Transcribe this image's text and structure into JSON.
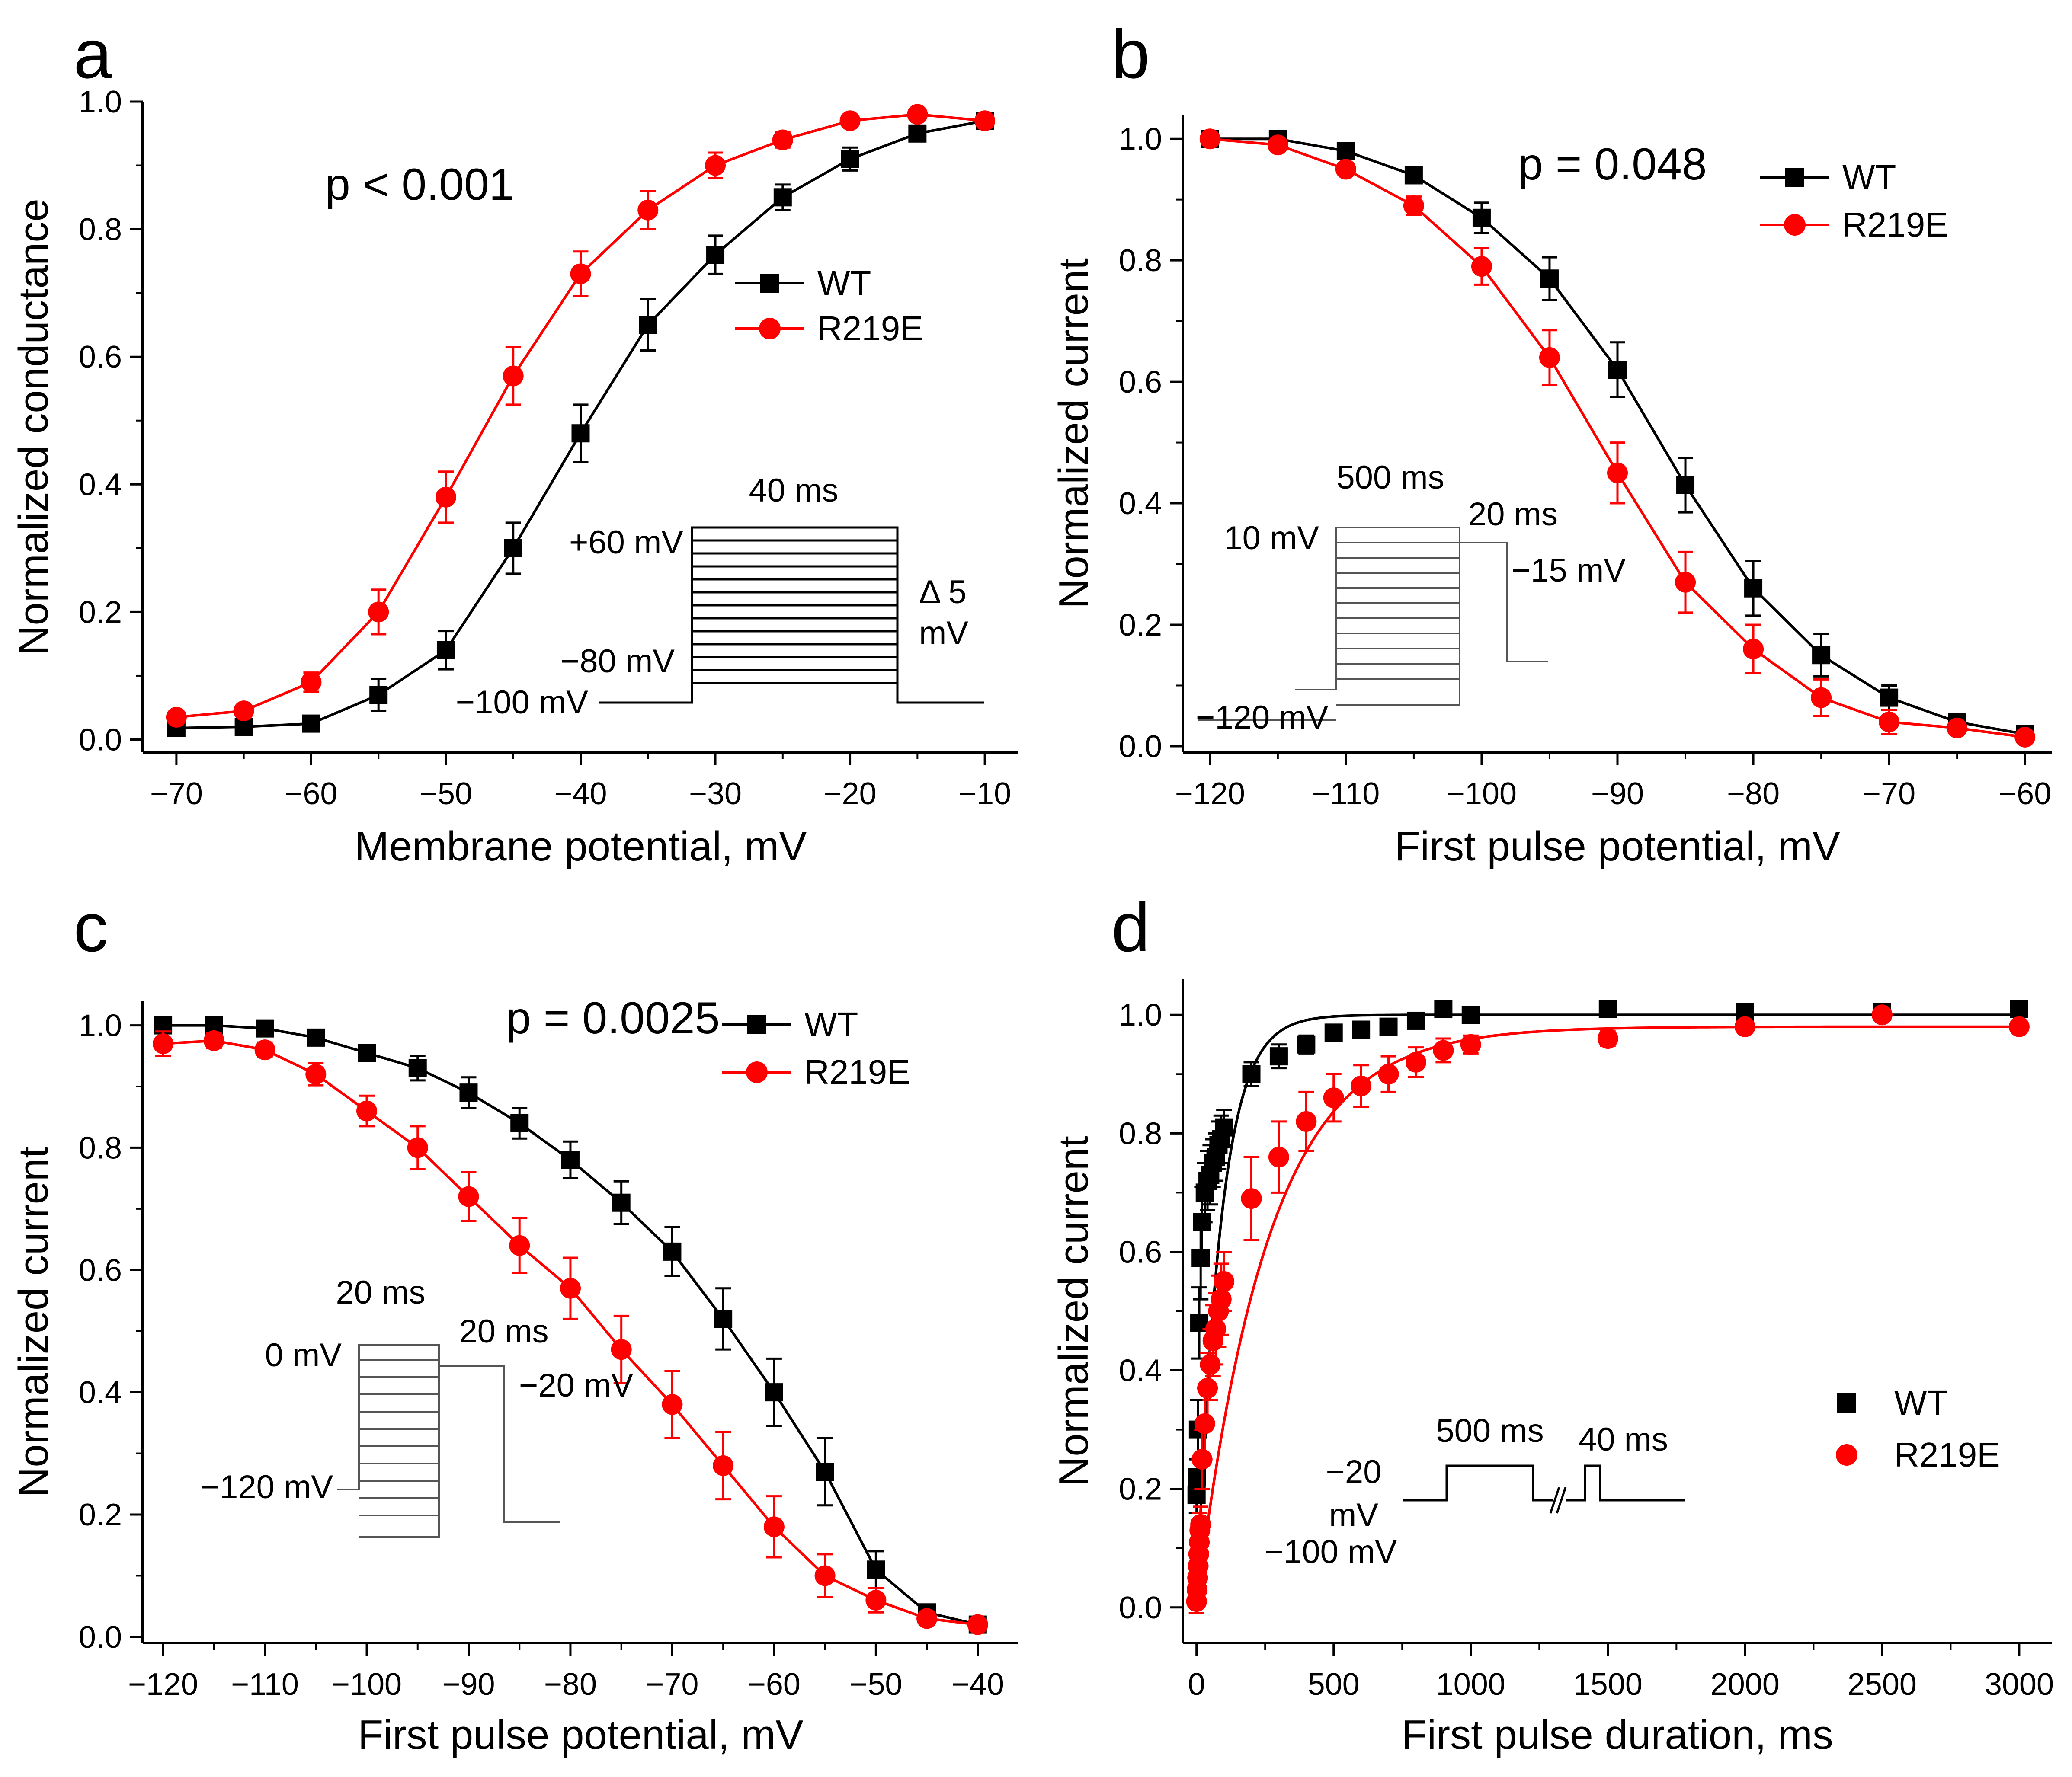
{
  "panels": [
    {
      "letter": "a",
      "pval": "p < 0.001",
      "inset": {
        "t1": "40 ms",
        "t2": "+60 mV",
        "t3": "Δ 5",
        "t4": "mV",
        "t5": "−80 mV",
        "t6": "−100 mV"
      }
    },
    {
      "letter": "b",
      "pval": "p = 0.048",
      "inset": {
        "t1": "500 ms",
        "t2": "20 ms",
        "t3": "10 mV",
        "t4": "−15 mV",
        "t5": "−120 mV"
      }
    },
    {
      "letter": "c",
      "pval": "p = 0.0025",
      "inset": {
        "t1": "20 ms",
        "t2": "0 mV",
        "t3": "20 ms",
        "t4": "−20 mV",
        "t5": "−120 mV"
      }
    },
    {
      "letter": "d",
      "pval": "",
      "inset": {
        "t1": "500 ms",
        "t2": "40 ms",
        "t3": "−20",
        "t4": "mV",
        "t5": "−100 mV"
      }
    }
  ],
  "colors": {
    "wt": "#000000",
    "r219e": "#ff0000"
  },
  "chart_data": [
    {
      "type": "scatter",
      "panel": "a",
      "title": "",
      "xlabel": "Membrane potential, mV",
      "ylabel": "Normalized conductance",
      "xlim": [
        -72.5,
        -7.5
      ],
      "ylim": [
        -0.02,
        1.0
      ],
      "xticks": [
        -70,
        -60,
        -50,
        -40,
        -30,
        -20,
        -10
      ],
      "xticklabels": [
        "−70",
        "−60",
        "−50",
        "−40",
        "−30",
        "−20",
        "−10"
      ],
      "yticks": [
        0.0,
        0.2,
        0.4,
        0.6,
        0.8,
        1.0
      ],
      "yticklabels": [
        "0.0",
        "0.2",
        "0.4",
        "0.6",
        "0.8",
        "1.0"
      ],
      "legend_position": "middle-right",
      "series": [
        {
          "name": "WT",
          "marker": "square",
          "line": true,
          "x": [
            -70,
            -65,
            -60,
            -55,
            -50,
            -45,
            -40,
            -35,
            -30,
            -25,
            -20,
            -15,
            -10
          ],
          "y": [
            0.018,
            0.02,
            0.025,
            0.07,
            0.14,
            0.3,
            0.48,
            0.65,
            0.76,
            0.85,
            0.91,
            0.95,
            0.97
          ],
          "err": [
            0.005,
            0.005,
            0.008,
            0.025,
            0.03,
            0.04,
            0.045,
            0.04,
            0.03,
            0.02,
            0.018,
            0.01,
            0.008
          ]
        },
        {
          "name": "R219E",
          "marker": "circle",
          "line": true,
          "x": [
            -70,
            -65,
            -60,
            -55,
            -50,
            -45,
            -40,
            -35,
            -30,
            -25,
            -20,
            -15,
            -10
          ],
          "y": [
            0.035,
            0.045,
            0.09,
            0.2,
            0.38,
            0.57,
            0.73,
            0.83,
            0.9,
            0.94,
            0.97,
            0.98,
            0.97
          ],
          "err": [
            0.008,
            0.008,
            0.015,
            0.035,
            0.04,
            0.045,
            0.035,
            0.03,
            0.02,
            0.012,
            0.008,
            0.008,
            0.008
          ]
        }
      ]
    },
    {
      "type": "scatter",
      "panel": "b",
      "title": "",
      "xlabel": "First pulse potential, mV",
      "ylabel": "Normalized current",
      "xlim": [
        -122,
        -58
      ],
      "ylim": [
        -0.01,
        1.04
      ],
      "xticks": [
        -120,
        -110,
        -100,
        -90,
        -80,
        -70,
        -60
      ],
      "xticklabels": [
        "−120",
        "−110",
        "−100",
        "−90",
        "−80",
        "−70",
        "−60"
      ],
      "yticks": [
        0.0,
        0.2,
        0.4,
        0.6,
        0.8,
        1.0
      ],
      "yticklabels": [
        "0.0",
        "0.2",
        "0.4",
        "0.6",
        "0.8",
        "1.0"
      ],
      "legend_position": "top-right",
      "series": [
        {
          "name": "WT",
          "marker": "square",
          "line": true,
          "x": [
            -120,
            -115,
            -110,
            -105,
            -100,
            -95,
            -90,
            -85,
            -80,
            -75,
            -70,
            -65,
            -60
          ],
          "y": [
            1.0,
            1.0,
            0.98,
            0.94,
            0.87,
            0.77,
            0.62,
            0.43,
            0.26,
            0.15,
            0.08,
            0.04,
            0.02
          ],
          "err": [
            0.005,
            0.008,
            0.01,
            0.01,
            0.025,
            0.035,
            0.045,
            0.045,
            0.045,
            0.035,
            0.02,
            0.01,
            0.006
          ]
        },
        {
          "name": "R219E",
          "marker": "circle",
          "line": true,
          "x": [
            -120,
            -115,
            -110,
            -105,
            -100,
            -95,
            -90,
            -85,
            -80,
            -75,
            -70,
            -65,
            -60
          ],
          "y": [
            1.0,
            0.99,
            0.95,
            0.89,
            0.79,
            0.64,
            0.45,
            0.27,
            0.16,
            0.08,
            0.04,
            0.03,
            0.015
          ],
          "err": [
            0.005,
            0.008,
            0.01,
            0.015,
            0.03,
            0.045,
            0.05,
            0.05,
            0.04,
            0.03,
            0.02,
            0.01,
            0.006
          ]
        }
      ]
    },
    {
      "type": "scatter",
      "panel": "c",
      "title": "",
      "xlabel": "First pulse potential, mV",
      "ylabel": "Normalized current",
      "xlim": [
        -122,
        -36
      ],
      "ylim": [
        -0.01,
        1.04
      ],
      "xticks": [
        -120,
        -110,
        -100,
        -90,
        -80,
        -70,
        -60,
        -50,
        -40
      ],
      "xticklabels": [
        "−120",
        "−110",
        "−100",
        "−90",
        "−80",
        "−70",
        "−60",
        "−50",
        "−40"
      ],
      "yticks": [
        0.0,
        0.2,
        0.4,
        0.6,
        0.8,
        1.0
      ],
      "yticklabels": [
        "0.0",
        "0.2",
        "0.4",
        "0.6",
        "0.8",
        "1.0"
      ],
      "legend_position": "top-right",
      "series": [
        {
          "name": "WT",
          "marker": "square",
          "line": true,
          "x": [
            -120,
            -115,
            -110,
            -105,
            -100,
            -95,
            -90,
            -85,
            -80,
            -75,
            -70,
            -65,
            -60,
            -55,
            -50,
            -45,
            -40
          ],
          "y": [
            1.0,
            1.0,
            0.995,
            0.98,
            0.955,
            0.93,
            0.89,
            0.84,
            0.78,
            0.71,
            0.63,
            0.52,
            0.4,
            0.27,
            0.11,
            0.04,
            0.02
          ],
          "err": [
            0.005,
            0.005,
            0.008,
            0.01,
            0.012,
            0.02,
            0.025,
            0.025,
            0.03,
            0.035,
            0.04,
            0.05,
            0.055,
            0.055,
            0.03,
            0.01,
            0.008
          ]
        },
        {
          "name": "R219E",
          "marker": "circle",
          "line": true,
          "x": [
            -120,
            -115,
            -110,
            -105,
            -100,
            -95,
            -90,
            -85,
            -80,
            -75,
            -70,
            -65,
            -60,
            -55,
            -50,
            -45,
            -40
          ],
          "y": [
            0.97,
            0.975,
            0.96,
            0.92,
            0.86,
            0.8,
            0.72,
            0.64,
            0.57,
            0.47,
            0.38,
            0.28,
            0.18,
            0.1,
            0.06,
            0.03,
            0.02
          ],
          "err": [
            0.02,
            0.012,
            0.012,
            0.018,
            0.025,
            0.035,
            0.04,
            0.045,
            0.05,
            0.055,
            0.055,
            0.055,
            0.05,
            0.035,
            0.02,
            0.01,
            0.008
          ]
        }
      ]
    },
    {
      "type": "scatter",
      "panel": "d",
      "title": "",
      "xlabel": "First pulse duration, ms",
      "ylabel": "Normalized current",
      "xlim": [
        -50,
        3120
      ],
      "ylim": [
        -0.06,
        1.06
      ],
      "xticks": [
        0,
        500,
        1000,
        1500,
        2000,
        2500,
        3000
      ],
      "xticklabels": [
        "0",
        "500",
        "1000",
        "1500",
        "2000",
        "2500",
        "3000"
      ],
      "yticks": [
        0.0,
        0.2,
        0.4,
        0.6,
        0.8,
        1.0
      ],
      "yticklabels": [
        "0.0",
        "0.2",
        "0.4",
        "0.6",
        "0.8",
        "1.0"
      ],
      "legend_position": "middle-right",
      "series": [
        {
          "name": "WT",
          "marker": "square",
          "line": false,
          "fit": {
            "a": 1.0,
            "tau": 85
          },
          "x": [
            0,
            2,
            5,
            10,
            15,
            20,
            30,
            40,
            50,
            60,
            70,
            80,
            90,
            100,
            200,
            300,
            400,
            500,
            600,
            700,
            800,
            900,
            1000,
            1500,
            2000,
            2500,
            3000
          ],
          "y": [
            0.19,
            0.22,
            0.3,
            0.48,
            0.59,
            0.65,
            0.7,
            0.72,
            0.73,
            0.75,
            0.76,
            0.78,
            0.79,
            0.81,
            0.9,
            0.93,
            0.95,
            0.97,
            0.975,
            0.98,
            0.99,
            1.01,
            1.0,
            1.01,
            1.005,
            1.005,
            1.01
          ],
          "err": [
            0.03,
            0.03,
            0.05,
            0.06,
            0.07,
            0.06,
            0.05,
            0.05,
            0.05,
            0.04,
            0.04,
            0.04,
            0.04,
            0.03,
            0.02,
            0.02,
            0.015,
            0.012,
            0.01,
            0.01,
            0.01,
            0.01,
            0.01,
            0.01,
            0.008,
            0.008,
            0.008
          ]
        },
        {
          "name": "R219E",
          "marker": "circle",
          "line": false,
          "fit": {
            "a": 0.98,
            "tau": 260
          },
          "x": [
            0,
            2,
            4,
            6,
            8,
            10,
            12,
            15,
            20,
            30,
            40,
            50,
            60,
            70,
            80,
            90,
            100,
            200,
            300,
            400,
            500,
            600,
            700,
            800,
            900,
            1000,
            1500,
            2000,
            2500,
            3000
          ],
          "y": [
            0.01,
            0.03,
            0.05,
            0.07,
            0.09,
            0.11,
            0.13,
            0.14,
            0.25,
            0.31,
            0.37,
            0.41,
            0.45,
            0.47,
            0.5,
            0.52,
            0.55,
            0.69,
            0.76,
            0.82,
            0.86,
            0.88,
            0.9,
            0.92,
            0.94,
            0.95,
            0.96,
            0.98,
            1.0,
            0.98
          ],
          "err": [
            0.02,
            0.02,
            0.02,
            0.02,
            0.02,
            0.03,
            0.03,
            0.03,
            0.05,
            0.06,
            0.06,
            0.06,
            0.06,
            0.06,
            0.06,
            0.06,
            0.05,
            0.07,
            0.06,
            0.05,
            0.04,
            0.035,
            0.03,
            0.025,
            0.02,
            0.015,
            0.012,
            0.01,
            0.008,
            0.008
          ]
        }
      ]
    }
  ]
}
